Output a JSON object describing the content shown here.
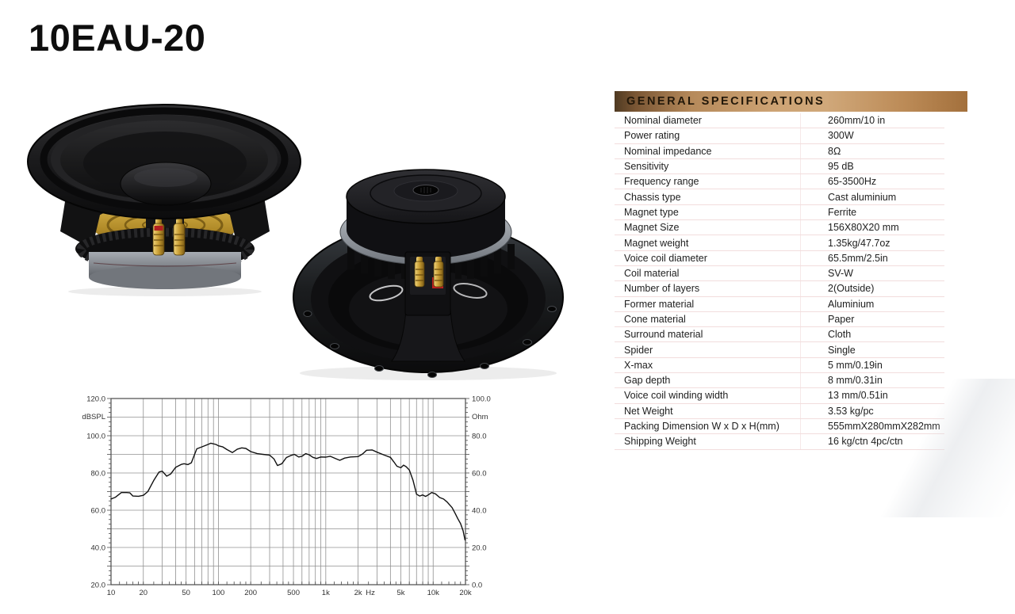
{
  "page": {
    "title": "10EAU-20"
  },
  "speakers": {
    "front_alt": "10-inch woofer, front three-quarter view",
    "rear_alt": "10-inch woofer, rear three-quarter view"
  },
  "specs": {
    "header": "GENERAL SPECIFICATIONS",
    "rows": [
      {
        "label": "Nominal diameter",
        "value": "260mm/10 in"
      },
      {
        "label": "Power rating",
        "value": "300W"
      },
      {
        "label": "Nominal impedance",
        "value": "8Ω"
      },
      {
        "label": "Sensitivity",
        "value": "95 dB"
      },
      {
        "label": "Frequency range",
        "value": "65-3500Hz"
      },
      {
        "label": "Chassis type",
        "value": "Cast aluminium"
      },
      {
        "label": "Magnet type",
        "value": "Ferrite"
      },
      {
        "label": "Magnet Size",
        "value": "156X80X20 mm"
      },
      {
        "label": "Magnet weight",
        "value": "1.35kg/47.7oz"
      },
      {
        "label": "Voice coil diameter",
        "value": "65.5mm/2.5in"
      },
      {
        "label": "Coil material",
        "value": "SV-W"
      },
      {
        "label": "Number of layers",
        "value": "2(Outside)"
      },
      {
        "label": "Former material",
        "value": "Aluminium"
      },
      {
        "label": "Cone material",
        "value": "Paper"
      },
      {
        "label": "Surround material",
        "value": "Cloth"
      },
      {
        "label": "Spider",
        "value": "Single"
      },
      {
        "label": "X-max",
        "value": "5 mm/0.19in"
      },
      {
        "label": "Gap depth",
        "value": "8 mm/0.31in"
      },
      {
        "label": "Voice coil winding width",
        "value": "13 mm/0.51in"
      },
      {
        "label": "Net Weight",
        "value": "3.53 kg/pc"
      },
      {
        "label": "Packing Dimension W x D x H(mm)",
        "value": "555mmX280mmX282mm"
      },
      {
        "label": "Shipping Weight",
        "value": "16 kg/ctn 4pc/ctn"
      }
    ]
  },
  "colors": {
    "header_gradient_left": "#4f3a22",
    "header_gradient_mid": "#cda374",
    "header_gradient_right": "#a3703c",
    "row_separator": "#f2dddd",
    "chart_grid": "#909090",
    "chart_frame": "#4a4a4a",
    "chart_curve": "#111111"
  },
  "chart_data": {
    "type": "line",
    "title": "",
    "x_scale": "log",
    "x_range": [
      10,
      20000
    ],
    "grid": "on",
    "legend_position": "none",
    "left_axis": {
      "label": "dBSPL",
      "range": [
        20,
        120
      ],
      "tick_values": [
        120,
        100,
        80,
        60,
        40,
        20
      ],
      "tick_labels": [
        "120.0",
        "100.0",
        "80.0",
        "60.0",
        "40.0",
        "20.0"
      ]
    },
    "right_axis": {
      "label": "Ohm",
      "range": [
        0,
        100
      ],
      "tick_values": [
        100,
        80,
        60,
        40,
        20,
        0
      ],
      "tick_labels": [
        "100.0",
        "80.0",
        "60.0",
        "40.0",
        "20.0",
        "0.0"
      ]
    },
    "x_ticks": [
      {
        "label": "10",
        "freq": 10
      },
      {
        "label": "20",
        "freq": 20
      },
      {
        "label": "50",
        "freq": 50
      },
      {
        "label": "100",
        "freq": 100
      },
      {
        "label": "200",
        "freq": 200
      },
      {
        "label": "500",
        "freq": 500
      },
      {
        "label": "1k",
        "freq": 1000
      },
      {
        "label": "2k",
        "freq": 2000
      },
      {
        "label": "Hz",
        "freq": 2600
      },
      {
        "label": "5k",
        "freq": 5000
      },
      {
        "label": "10k",
        "freq": 10000
      },
      {
        "label": "20k",
        "freq": 20000
      }
    ],
    "grid_freqs": [
      20,
      30,
      40,
      50,
      60,
      70,
      80,
      90,
      100,
      200,
      300,
      400,
      500,
      600,
      700,
      800,
      900,
      1000,
      2000,
      3000,
      4000,
      5000,
      6000,
      7000,
      8000,
      9000,
      10000
    ],
    "grid_db": [
      30,
      40,
      50,
      60,
      70,
      80,
      90,
      100,
      110
    ],
    "series": [
      {
        "name": "SPL (dBSPL)",
        "points": [
          [
            10,
            66
          ],
          [
            11,
            67
          ],
          [
            12.5,
            69.5
          ],
          [
            14,
            69.5
          ],
          [
            15,
            69.3
          ],
          [
            16,
            67.6
          ],
          [
            18,
            67.5
          ],
          [
            20,
            68
          ],
          [
            22,
            70
          ],
          [
            25,
            76
          ],
          [
            28,
            80.5
          ],
          [
            30,
            81
          ],
          [
            33,
            78.3
          ],
          [
            36,
            79.5
          ],
          [
            40,
            83
          ],
          [
            45,
            84.6
          ],
          [
            48,
            85
          ],
          [
            52,
            84.5
          ],
          [
            56,
            85.5
          ],
          [
            60,
            90
          ],
          [
            63,
            93
          ],
          [
            70,
            94
          ],
          [
            80,
            95.3
          ],
          [
            85,
            96
          ],
          [
            95,
            95.3
          ],
          [
            100,
            94.6
          ],
          [
            110,
            94
          ],
          [
            120,
            92.6
          ],
          [
            135,
            91
          ],
          [
            150,
            92.8
          ],
          [
            165,
            93.5
          ],
          [
            180,
            93.2
          ],
          [
            200,
            91.5
          ],
          [
            230,
            90.4
          ],
          [
            260,
            90
          ],
          [
            300,
            89.6
          ],
          [
            330,
            87.5
          ],
          [
            355,
            84
          ],
          [
            390,
            85
          ],
          [
            430,
            88.3
          ],
          [
            470,
            89.3
          ],
          [
            510,
            90
          ],
          [
            560,
            88.6
          ],
          [
            600,
            89
          ],
          [
            650,
            90.4
          ],
          [
            700,
            89.8
          ],
          [
            760,
            88.4
          ],
          [
            820,
            87.8
          ],
          [
            900,
            88.6
          ],
          [
            1000,
            88.5
          ],
          [
            1100,
            89
          ],
          [
            1250,
            87.6
          ],
          [
            1350,
            86.8
          ],
          [
            1500,
            88
          ],
          [
            1700,
            88.6
          ],
          [
            2000,
            88.8
          ],
          [
            2200,
            90.2
          ],
          [
            2400,
            92.2
          ],
          [
            2700,
            92.4
          ],
          [
            3000,
            91.2
          ],
          [
            3500,
            89.6
          ],
          [
            4000,
            88.4
          ],
          [
            4300,
            86
          ],
          [
            4600,
            83.6
          ],
          [
            5000,
            82.8
          ],
          [
            5300,
            84.2
          ],
          [
            5600,
            83.4
          ],
          [
            6000,
            81.6
          ],
          [
            6500,
            76
          ],
          [
            7000,
            68.6
          ],
          [
            7500,
            67.6
          ],
          [
            8000,
            68.2
          ],
          [
            8500,
            67.4
          ],
          [
            9000,
            68.2
          ],
          [
            9700,
            69.5
          ],
          [
            10500,
            68.8
          ],
          [
            11500,
            66.8
          ],
          [
            12500,
            66
          ],
          [
            13500,
            64.4
          ],
          [
            15000,
            61.4
          ],
          [
            16000,
            58.4
          ],
          [
            17000,
            55.4
          ],
          [
            18000,
            52.8
          ],
          [
            19000,
            49
          ],
          [
            19800,
            44
          ]
        ]
      }
    ]
  }
}
